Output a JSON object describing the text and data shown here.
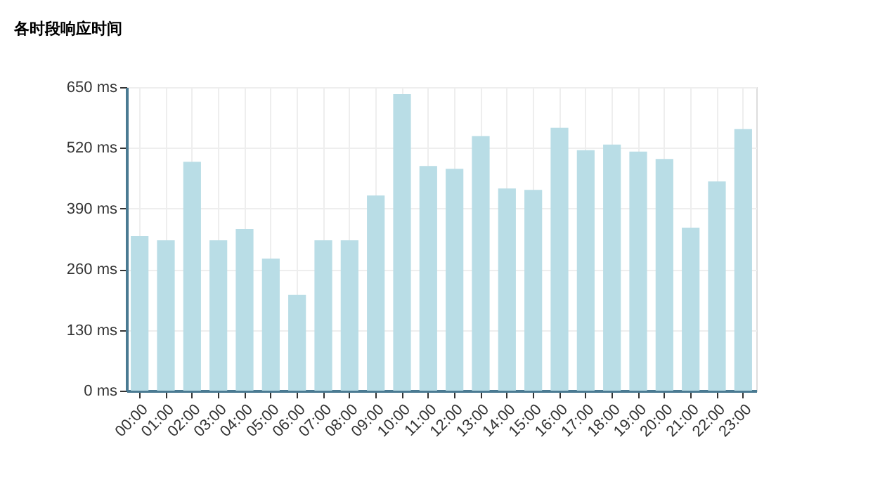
{
  "chart_data": {
    "type": "bar",
    "title": "各时段响应时间",
    "categories": [
      "00:00",
      "01:00",
      "02:00",
      "03:00",
      "04:00",
      "05:00",
      "06:00",
      "07:00",
      "08:00",
      "09:00",
      "10:00",
      "11:00",
      "12:00",
      "13:00",
      "14:00",
      "15:00",
      "16:00",
      "17:00",
      "18:00",
      "19:00",
      "20:00",
      "21:00",
      "22:00",
      "23:00"
    ],
    "values": [
      331,
      322,
      490,
      322,
      346,
      283,
      205,
      322,
      322,
      418,
      635,
      481,
      475,
      545,
      433,
      430,
      563,
      515,
      527,
      512,
      496,
      349,
      448,
      560
    ],
    "color": "#b9dde6",
    "ylim": [
      0,
      650
    ],
    "yticks": [
      {
        "value": 0,
        "label": "0 ms"
      },
      {
        "value": 130,
        "label": "130 ms"
      },
      {
        "value": 260,
        "label": "260 ms"
      },
      {
        "value": 390,
        "label": "390 ms"
      },
      {
        "value": 520,
        "label": "520 ms"
      },
      {
        "value": 650,
        "label": "650 ms"
      }
    ],
    "grid": true
  }
}
